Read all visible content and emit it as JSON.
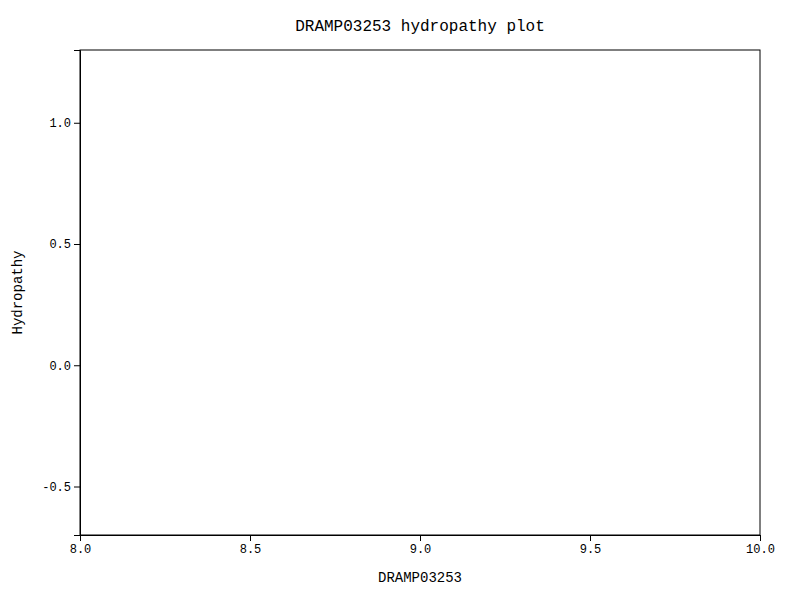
{
  "chart_data": {
    "type": "line",
    "title": "DRAMP03253 hydropathy plot",
    "xlabel": "DRAMP03253",
    "ylabel": "Hydropathy",
    "xlim": [
      8.0,
      10.0
    ],
    "ylim": [
      -0.7,
      1.3
    ],
    "xticks": [
      {
        "value": 8.0,
        "label": "8.0"
      },
      8.5,
      {
        "value": 9.0,
        "label": "9.0"
      },
      9.5,
      {
        "value": 10.0,
        "label": "10.0"
      }
    ],
    "yticks": [
      -0.5,
      {
        "value": 0.0,
        "label": "0.0"
      },
      0.5,
      {
        "value": 1.0,
        "label": "1.0"
      }
    ],
    "grid": false
  }
}
